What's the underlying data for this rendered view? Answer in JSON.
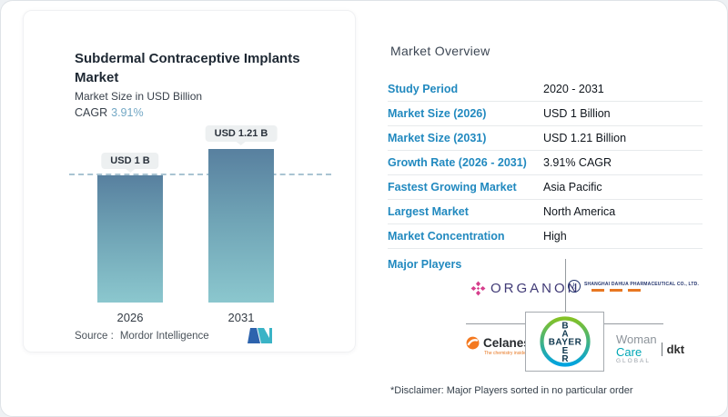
{
  "left_card": {
    "title": "Subdermal Contraceptive Implants Market",
    "subtitle": "Market Size in USD Billion",
    "cagr_label": "CAGR",
    "cagr_value": "3.91%",
    "source_label": "Source :",
    "source_name": "Mordor Intelligence"
  },
  "chart_data": {
    "type": "bar",
    "categories": [
      "2026",
      "2031"
    ],
    "values": [
      1,
      1.21
    ],
    "unit": "USD Billion",
    "bar_labels": [
      "USD 1 B",
      "USD 1.21 B"
    ],
    "title": "Subdermal Contraceptive Implants Market",
    "ylabel": "Market Size in USD Billion",
    "ylim": [
      0,
      1.45
    ],
    "reference_line_y": 1,
    "gridlines": false,
    "legend": "none",
    "bar_color_gradient": [
      "#58809f",
      "#8bc7ce"
    ]
  },
  "overview": {
    "title": "Market Overview",
    "rows": [
      {
        "label": "Study Period",
        "value": "2020 - 2031"
      },
      {
        "label": "Market Size (2026)",
        "value": "USD 1 Billion"
      },
      {
        "label": "Market Size (2031)",
        "value": "USD 1.21 Billion"
      },
      {
        "label": "Growth Rate (2026 - 2031)",
        "value": "3.91% CAGR"
      },
      {
        "label": "Fastest Growing Market",
        "value": "Asia Pacific"
      },
      {
        "label": "Largest Market",
        "value": "North America"
      },
      {
        "label": "Market Concentration",
        "value": "High"
      }
    ],
    "major_players_label": "Major Players",
    "disclaimer": "*Disclaimer: Major Players sorted in no particular order"
  },
  "players": {
    "organon_text": "ORGANON",
    "dahua_icon_letter": "h",
    "dahua_name": "SHANGHAI DAHUA PHARMACEUTICAL CO., LTD.",
    "celanese_name": "Celanese",
    "celanese_tagline": "The chemistry inside innovation",
    "bayer_word": "BAYER",
    "bayer_vertical": [
      "B",
      "A",
      "Y",
      "E",
      "R"
    ],
    "womancare_line1": "Woman",
    "womancare_line2": "Care",
    "womancare_line3": "GLOBAL",
    "womancare_dkt": "dkt"
  },
  "colors": {
    "accent_blue": "#2189bf",
    "cagr_value_blue": "#73a8c5",
    "bar_top": "#58809f",
    "bar_bottom": "#8bc7ce",
    "organon_purple": "#403a76",
    "organon_magenta": "#d63f8d",
    "dahua_navy": "#24356e",
    "celanese_orange": "#e87722",
    "bayer_navy": "#10384f",
    "bayer_green": "#84c225",
    "bayer_blue": "#00a3e0",
    "womancare_teal": "#00a7b5",
    "mordor_blue": "#2d63ad",
    "mordor_teal": "#3ab3c6"
  }
}
